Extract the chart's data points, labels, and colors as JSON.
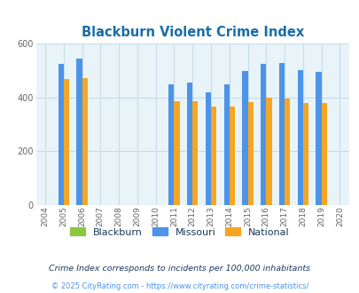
{
  "title": "Blackburn Violent Crime Index",
  "years": [
    2004,
    2005,
    2006,
    2007,
    2008,
    2009,
    2010,
    2011,
    2012,
    2013,
    2014,
    2015,
    2016,
    2017,
    2018,
    2019,
    2020
  ],
  "blackburn": [
    0,
    0,
    0,
    0,
    0,
    0,
    0,
    0,
    0,
    0,
    0,
    0,
    0,
    0,
    0,
    0,
    0
  ],
  "missouri": [
    0,
    527,
    545,
    0,
    0,
    0,
    0,
    451,
    455,
    420,
    448,
    500,
    525,
    528,
    502,
    497,
    0
  ],
  "national": [
    0,
    469,
    474,
    0,
    0,
    0,
    0,
    387,
    387,
    368,
    366,
    383,
    399,
    397,
    381,
    379,
    0
  ],
  "bar_width": 0.3,
  "colors": {
    "blackburn": "#8dc63f",
    "missouri": "#4d94e8",
    "national": "#f5a623"
  },
  "ylim": [
    0,
    600
  ],
  "yticks": [
    0,
    200,
    400,
    600
  ],
  "bg_color": "#e8f4f8",
  "grid_color": "#c8dce8",
  "title_color": "#1a6ea8",
  "legend_labels": [
    "Blackburn",
    "Missouri",
    "National"
  ],
  "note": "Crime Index corresponds to incidents per 100,000 inhabitants",
  "copyright": "© 2025 CityRating.com - https://www.cityrating.com/crime-statistics/",
  "note_color": "#1a3a5c",
  "copyright_color": "#4d94e8"
}
